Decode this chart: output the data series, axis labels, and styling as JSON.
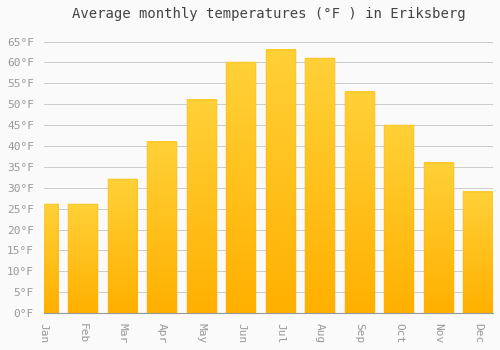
{
  "title": "Average monthly temperatures (°F ) in Eriksberg",
  "months": [
    "Jan",
    "Feb",
    "Mar",
    "Apr",
    "May",
    "Jun",
    "Jul",
    "Aug",
    "Sep",
    "Oct",
    "Nov",
    "Dec"
  ],
  "values": [
    26,
    26,
    32,
    41,
    51,
    60,
    63,
    61,
    53,
    45,
    36,
    29
  ],
  "bar_color_top": "#FFC125",
  "bar_color_bottom": "#FFB000",
  "background_color": "#FAFAFA",
  "grid_color": "#CCCCCC",
  "tick_label_color": "#999999",
  "title_color": "#444444",
  "ylim": [
    0,
    68
  ],
  "yticks": [
    0,
    5,
    10,
    15,
    20,
    25,
    30,
    35,
    40,
    45,
    50,
    55,
    60,
    65
  ],
  "title_fontsize": 10,
  "tick_fontsize": 8,
  "figsize": [
    5.0,
    3.5
  ],
  "dpi": 100,
  "bar_width": 0.75
}
